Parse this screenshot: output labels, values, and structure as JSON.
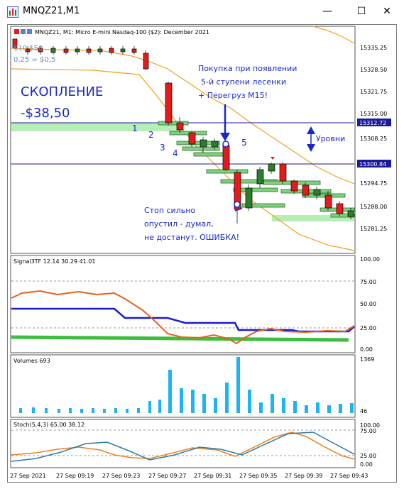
{
  "window": {
    "title": "MNQZ21,M1",
    "minimize": "—",
    "maximize": "☐",
    "close": "✕"
  },
  "main_pane": {
    "header": "MNQZ21, M1:  Micro E-mini Nasdaq-100 ($2): December 2021",
    "scale_line1": "$10 $50",
    "scale_line2": "0,25 = $0,5",
    "accum_label": "СКОПЛЕНИЕ",
    "accum_value": "-$38,50",
    "buy_note": [
      "Покупка при появлении",
      "5-й ступени лесенки",
      "+ Перегруз М15!"
    ],
    "stop_note": [
      "Стоп сильно",
      "опустил - думал,",
      "не достанут. ОШИБКА!"
    ],
    "levels_label": "Уровни",
    "step_labels": [
      "1",
      "2",
      "3",
      "4",
      "5"
    ],
    "price_ticks": [
      "15335.25",
      "15328.50",
      "15321.75",
      "15315.00",
      "15308.25",
      "15294.75",
      "15288.00",
      "15281.25"
    ],
    "highlight_1": "15312.72",
    "highlight_2": "15300.84"
  },
  "signal_pane": {
    "header": "Signal3TF  12.14 30.29 41.01",
    "ticks": [
      "100.00",
      "75.00",
      "50.00",
      "25.00",
      "0.00"
    ]
  },
  "volume_pane": {
    "header": "Volumes 693",
    "ticks": [
      "1369",
      "46"
    ]
  },
  "stoch_pane": {
    "header": "Stoch(5,4,3) 65.00 38.12",
    "ticks": [
      "100.00",
      "75.00",
      "25.00",
      "0.00"
    ]
  },
  "time_axis": [
    "27 Sep 2021",
    "27 Sep 09:19",
    "27 Sep 09:23",
    "27 Sep 09:27",
    "27 Sep 09:31",
    "27 Sep 09:35",
    "27 Sep 09:39",
    "27 Sep 09:43"
  ],
  "colors": {
    "bull": "#2e7d2e",
    "bear": "#e41b1b",
    "note": "#1a28c8",
    "envelope": "#f0a020",
    "level_line": "#1a1a9a",
    "zone": "#7ee07e"
  }
}
